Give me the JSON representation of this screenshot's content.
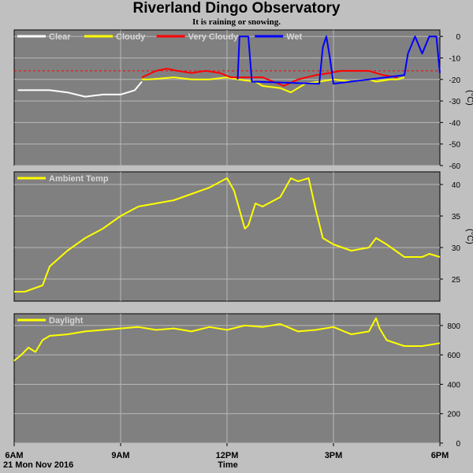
{
  "title": "Riverland Dingo Observatory",
  "subtitle": "It is raining or snowing.",
  "date": "21 Mon Nov 2016",
  "x_axis_title": "Time",
  "x_ticks": [
    "6AM",
    "9AM",
    "12PM",
    "3PM",
    "6PM"
  ],
  "colors": {
    "background": "#c0c0c0",
    "plot_bg": "#808080",
    "grid": "#b8b8b8",
    "clear": "#ffffff",
    "cloudy": "#ffff00",
    "very_cloudy": "#ff0000",
    "wet": "#0000ff",
    "threshold": "#ff0000"
  },
  "chart_data": [
    {
      "type": "line",
      "title": "",
      "ylabel": "(°C)",
      "ylim": [
        -60,
        3
      ],
      "yticks": [
        0,
        -10,
        -20,
        -30,
        -40,
        -50,
        -60
      ],
      "xlim": [
        6,
        18
      ],
      "threshold": -16,
      "legend": [
        "Clear",
        "Cloudy",
        "Very Cloudy",
        "Wet"
      ],
      "series": [
        {
          "name": "Clear",
          "color": "#ffffff",
          "x": [
            6.1,
            6.5,
            7.0,
            7.5,
            8.0,
            8.5,
            9.0,
            9.4,
            9.6
          ],
          "y": [
            -25,
            -25,
            -25,
            -26,
            -28,
            -27,
            -27,
            -25,
            -21
          ]
        },
        {
          "name": "Cloudy",
          "color": "#ffff00",
          "x": [
            9.6,
            9.8,
            10.5,
            11.0,
            11.5,
            12.0,
            12.3,
            12.8,
            13.0,
            13.5,
            13.8,
            14.2,
            15.0,
            15.5,
            16.0,
            16.2,
            16.6,
            16.8,
            17.0
          ],
          "y": [
            -20,
            -20,
            -19,
            -20,
            -20,
            -19,
            -20,
            -21,
            -23,
            -24,
            -26,
            -22,
            -20,
            -21,
            -20,
            -21,
            -20,
            -20,
            -19
          ]
        },
        {
          "name": "Very Cloudy",
          "color": "#ff0000",
          "x": [
            9.6,
            10.0,
            10.3,
            10.6,
            11.0,
            11.4,
            11.8,
            12.1,
            13.0,
            13.3,
            13.6,
            14.0,
            14.5,
            14.9,
            15.2,
            15.6,
            16.0,
            16.4,
            16.8
          ],
          "y": [
            -19,
            -16,
            -15,
            -16,
            -17,
            -16,
            -17,
            -19,
            -19,
            -21,
            -23,
            -20,
            -18,
            -17,
            -16,
            -16,
            -16,
            -18,
            -19
          ]
        },
        {
          "name": "Wet",
          "color": "#0000ff",
          "x": [
            12.3,
            12.35,
            12.6,
            12.7,
            14.6,
            14.7,
            14.8,
            14.9,
            15.0,
            17.0,
            17.1,
            17.3,
            17.5,
            17.7,
            17.9,
            18.0
          ],
          "y": [
            -20,
            0,
            0,
            -21,
            -22,
            -5,
            0,
            -10,
            -22,
            -18,
            -8,
            0,
            -8,
            0,
            0,
            -17
          ]
        }
      ]
    },
    {
      "type": "line",
      "title": "",
      "ylabel": "(°C)",
      "ylim": [
        21.5,
        42
      ],
      "yticks": [
        25,
        30,
        35,
        40
      ],
      "xlim": [
        6,
        18
      ],
      "legend": [
        "Ambient Temp"
      ],
      "series": [
        {
          "name": "Ambient Temp",
          "color": "#ffff00",
          "x": [
            6.0,
            6.3,
            6.8,
            7.0,
            7.5,
            8.0,
            8.5,
            9.0,
            9.5,
            10.0,
            10.5,
            11.0,
            11.5,
            12.0,
            12.2,
            12.5,
            12.6,
            12.8,
            13.0,
            13.5,
            13.8,
            14.0,
            14.3,
            14.5,
            14.7,
            15.0,
            15.5,
            16.0,
            16.2,
            16.5,
            17.0,
            17.5,
            17.7,
            18.0
          ],
          "y": [
            23,
            23,
            24,
            27,
            29.5,
            31.5,
            33,
            35,
            36.5,
            37,
            37.5,
            38.5,
            39.5,
            41,
            39,
            33,
            33.5,
            37,
            36.5,
            38,
            41,
            40.5,
            41,
            36,
            31.5,
            30.5,
            29.5,
            30,
            31.5,
            30.5,
            28.5,
            28.5,
            29,
            28.5
          ]
        }
      ]
    },
    {
      "type": "line",
      "title": "",
      "ylabel": "",
      "ylim": [
        0,
        880
      ],
      "yticks": [
        0,
        200,
        400,
        600,
        800
      ],
      "xlim": [
        6,
        18
      ],
      "legend": [
        "Daylight"
      ],
      "series": [
        {
          "name": "Daylight",
          "color": "#ffff00",
          "x": [
            6.0,
            6.2,
            6.4,
            6.6,
            6.8,
            7.0,
            7.5,
            8.0,
            8.5,
            9.0,
            9.5,
            10.0,
            10.5,
            11.0,
            11.5,
            12.0,
            12.5,
            13.0,
            13.5,
            14.0,
            14.5,
            15.0,
            15.5,
            16.0,
            16.2,
            16.3,
            16.5,
            17.0,
            17.5,
            18.0
          ],
          "y": [
            560,
            600,
            650,
            620,
            700,
            730,
            740,
            760,
            770,
            780,
            790,
            770,
            780,
            760,
            790,
            770,
            800,
            790,
            810,
            760,
            770,
            790,
            740,
            760,
            850,
            780,
            700,
            660,
            660,
            680
          ]
        }
      ]
    }
  ]
}
